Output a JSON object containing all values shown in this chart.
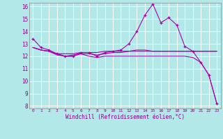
{
  "background_color": "#b3e8e8",
  "grid_color": "#ffffff",
  "line_color": "#aa00aa",
  "xlabel": "Windchill (Refroidissement éolien,°C)",
  "xlim": [
    -0.5,
    23.5
  ],
  "ylim": [
    7.8,
    16.3
  ],
  "yticks": [
    8,
    9,
    10,
    11,
    12,
    13,
    14,
    15,
    16
  ],
  "xticks": [
    0,
    1,
    2,
    3,
    4,
    5,
    6,
    7,
    8,
    9,
    10,
    11,
    12,
    13,
    14,
    15,
    16,
    17,
    18,
    19,
    20,
    21,
    22,
    23
  ],
  "series": [
    {
      "x": [
        0,
        1,
        2,
        3,
        4,
        5,
        6,
        7,
        8,
        9,
        10,
        11,
        12,
        13,
        14,
        15,
        16,
        17,
        18,
        19,
        20,
        21,
        22,
        23
      ],
      "y": [
        13.4,
        12.7,
        12.5,
        12.2,
        12.0,
        12.0,
        12.3,
        12.3,
        12.0,
        12.3,
        12.4,
        12.5,
        13.0,
        14.0,
        15.3,
        16.2,
        14.7,
        15.1,
        14.5,
        12.8,
        12.4,
        11.5,
        10.5,
        8.2
      ],
      "marker": "+"
    },
    {
      "x": [
        0,
        1,
        2,
        3,
        4,
        5,
        6,
        7,
        8,
        9,
        10,
        11,
        12,
        13,
        14,
        15,
        16,
        17,
        18,
        19,
        20,
        21,
        22,
        23
      ],
      "y": [
        12.7,
        12.5,
        12.4,
        12.2,
        12.2,
        12.2,
        12.3,
        12.3,
        12.3,
        12.4,
        12.4,
        12.4,
        12.4,
        12.4,
        12.4,
        12.4,
        12.4,
        12.4,
        12.4,
        12.4,
        12.4,
        12.4,
        12.4,
        12.4
      ],
      "marker": null
    },
    {
      "x": [
        0,
        1,
        2,
        3,
        4,
        5,
        6,
        7,
        8,
        9,
        10,
        11,
        12,
        13,
        14,
        15,
        16,
        17,
        18,
        19,
        20,
        21,
        22,
        23
      ],
      "y": [
        12.7,
        12.5,
        12.4,
        12.2,
        12.0,
        12.1,
        12.2,
        12.2,
        12.1,
        12.2,
        12.3,
        12.3,
        12.4,
        12.5,
        12.5,
        12.4,
        12.4,
        12.4,
        12.4,
        12.4,
        12.4,
        12.4,
        12.4,
        12.4
      ],
      "marker": null
    },
    {
      "x": [
        0,
        1,
        2,
        3,
        4,
        5,
        6,
        7,
        8,
        9,
        10,
        11,
        12,
        13,
        14,
        15,
        16,
        17,
        18,
        19,
        20,
        21,
        22,
        23
      ],
      "y": [
        12.7,
        12.5,
        12.4,
        12.1,
        12.0,
        12.0,
        12.2,
        12.0,
        11.9,
        12.0,
        12.0,
        12.0,
        12.0,
        12.0,
        12.0,
        12.0,
        12.0,
        12.0,
        12.0,
        12.0,
        11.9,
        11.5,
        10.5,
        8.2
      ],
      "marker": null
    }
  ]
}
